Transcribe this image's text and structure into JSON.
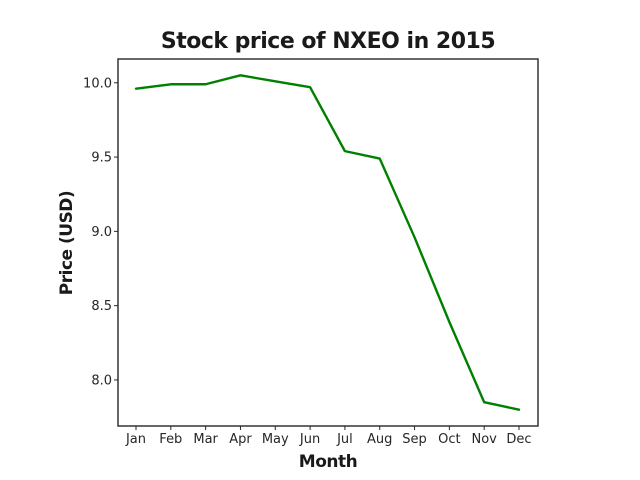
{
  "chart_data": {
    "type": "line",
    "title": "Stock price of NXEO in 2015",
    "xlabel": "Month",
    "ylabel": "Price (USD)",
    "categories": [
      "Jan",
      "Feb",
      "Mar",
      "Apr",
      "May",
      "Jun",
      "Jul",
      "Aug",
      "Sep",
      "Oct",
      "Nov",
      "Dec"
    ],
    "series": [
      {
        "values": [
          9.96,
          9.99,
          9.99,
          10.05,
          10.01,
          9.97,
          9.54,
          9.49,
          8.96,
          8.39,
          7.85,
          7.8
        ]
      }
    ],
    "yticks": [
      "8.0",
      "8.5",
      "9.0",
      "9.5",
      "10.0"
    ],
    "ylim": [
      7.69,
      10.16
    ],
    "grid": false,
    "line_color": "#008000"
  }
}
